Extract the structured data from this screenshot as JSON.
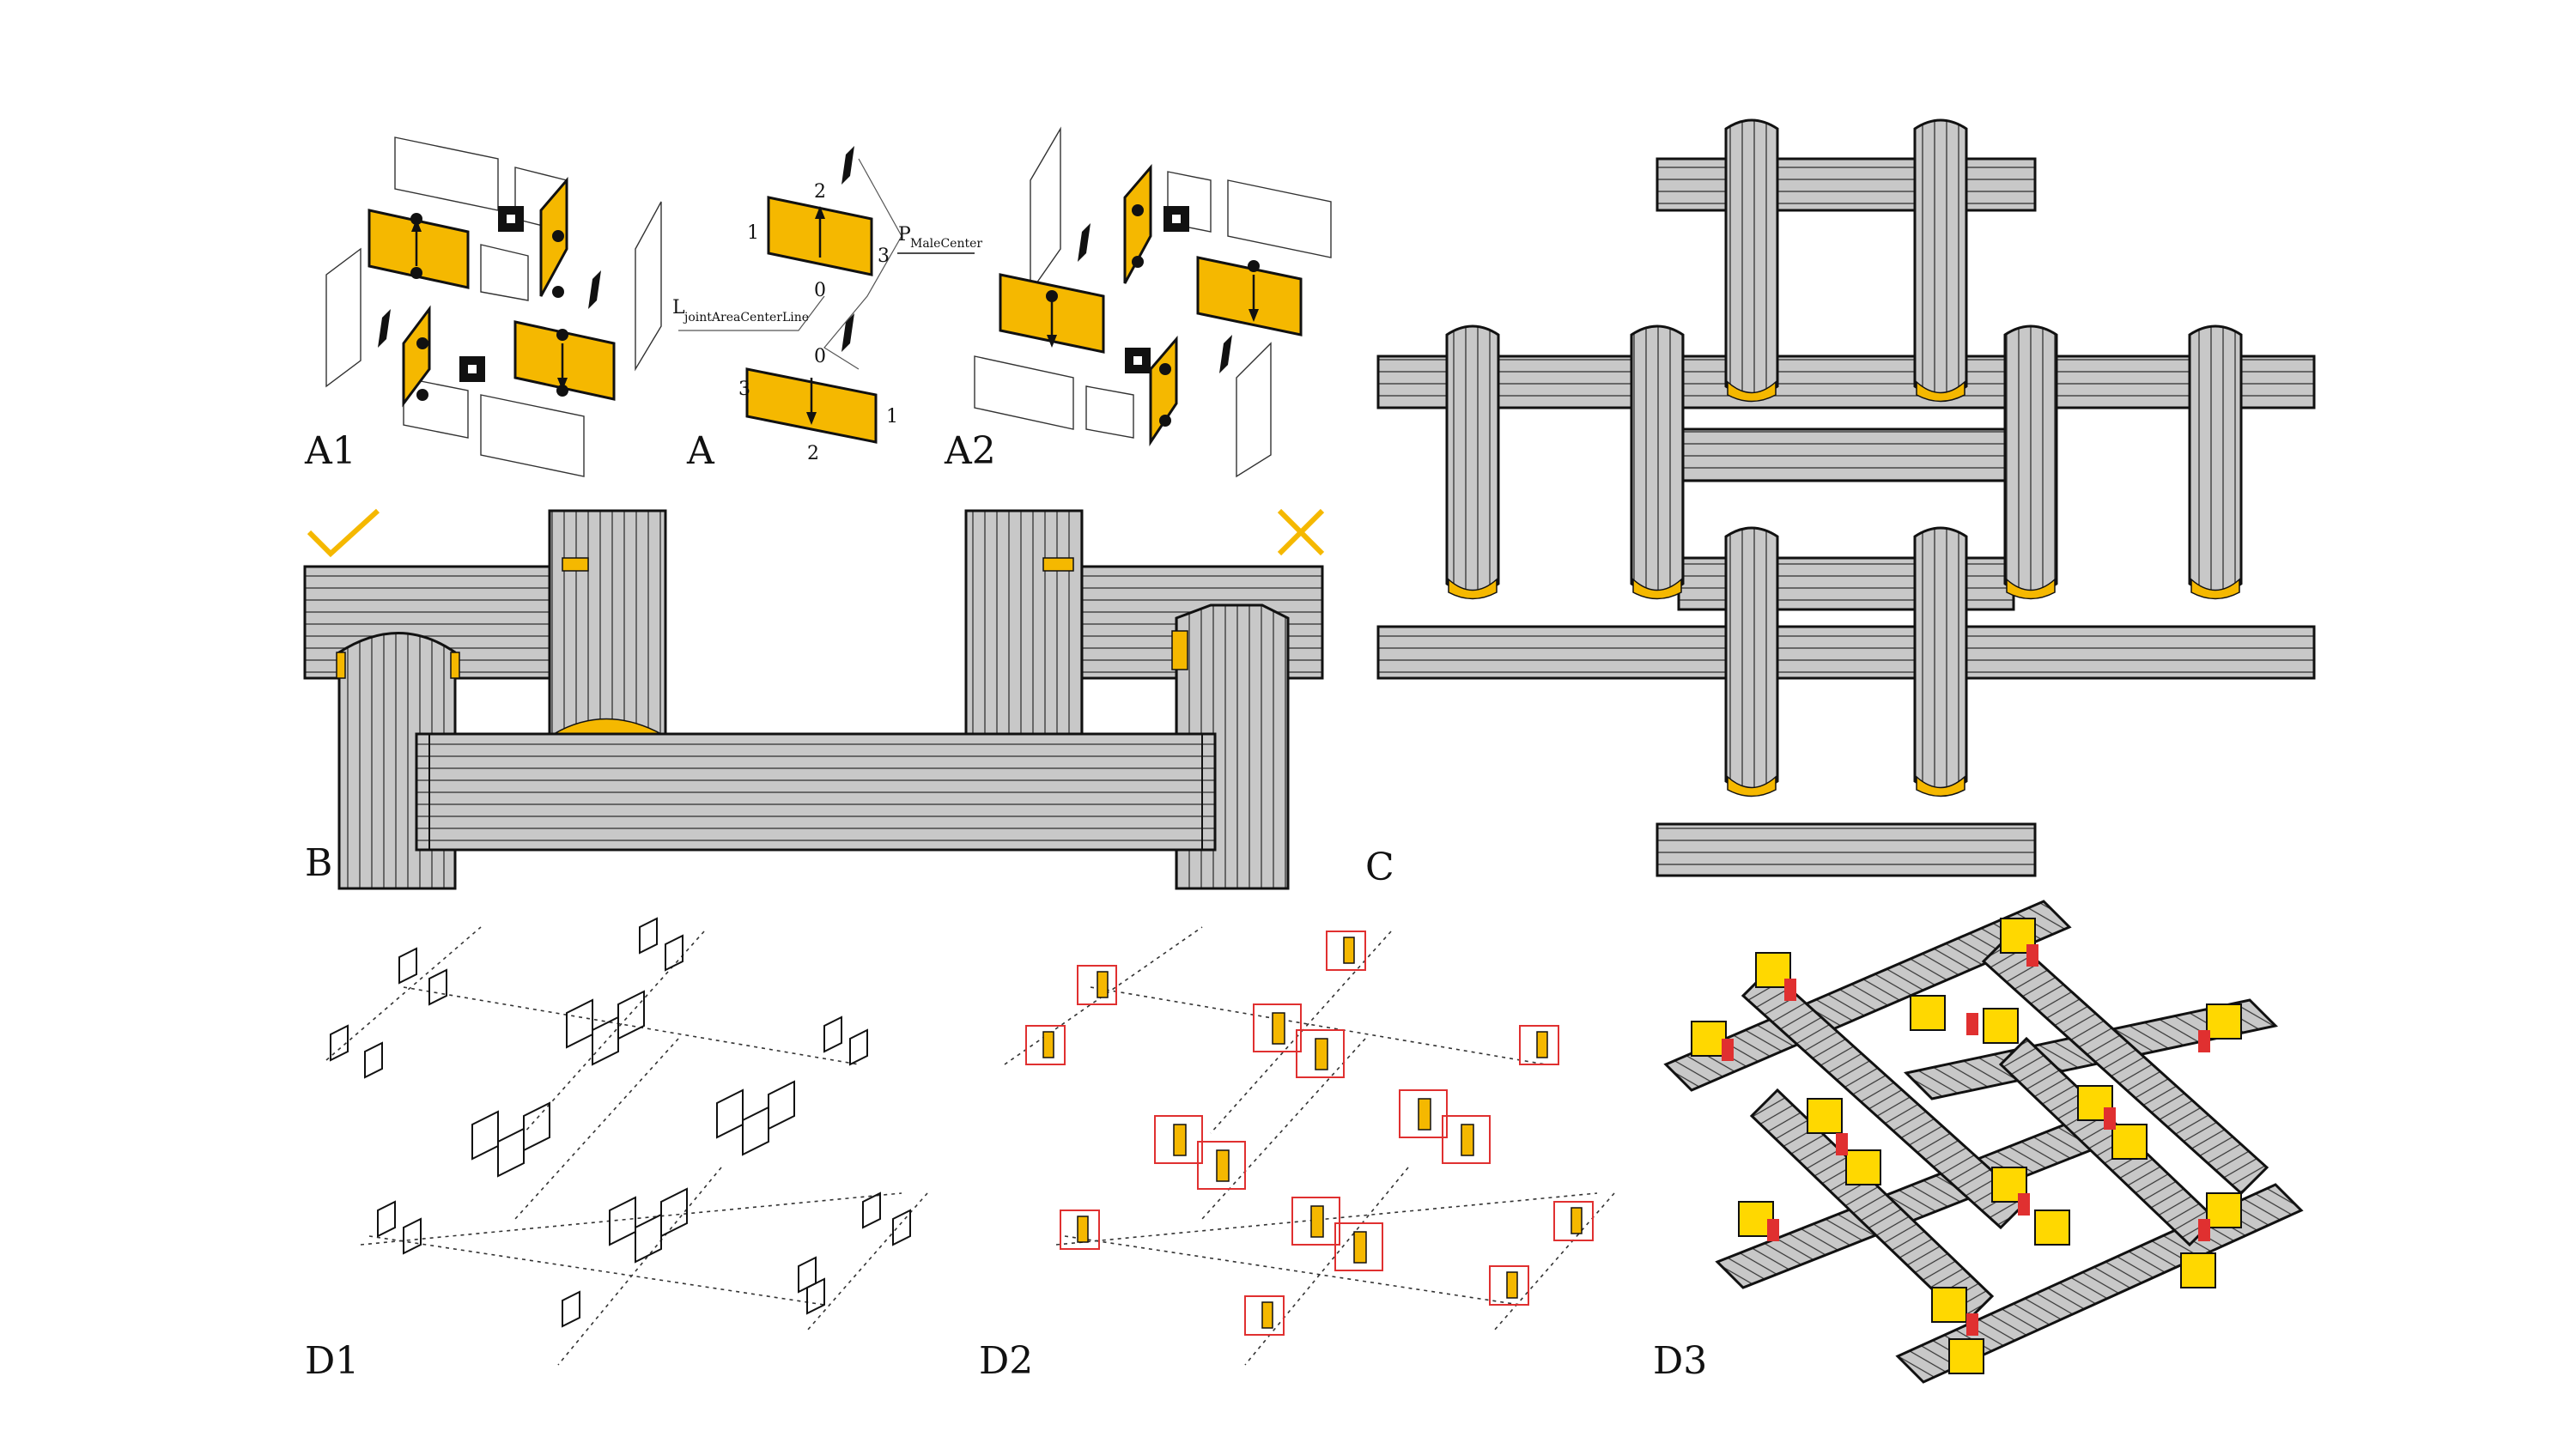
{
  "labels": {
    "a1": "A1",
    "a": "A",
    "a2": "A2",
    "b": "B",
    "c": "C",
    "d1": "D1",
    "d2": "D2",
    "d3": "D3"
  },
  "panel_a": {
    "edge_numbers": {
      "top_panel_left": "1",
      "top_panel_top": "2",
      "top_panel_right": "3",
      "mid_upper": "0",
      "mid_lower": "0",
      "bottom_panel_left": "3",
      "bottom_panel_bottom": "2",
      "bottom_panel_right": "1"
    },
    "joint_line_main": "L",
    "joint_line_sub": "jointAreaCenterLine",
    "male_center_main": "P",
    "male_center_sub": "MaleCenter"
  },
  "panel_b": {
    "valid_mark": "check-icon",
    "invalid_mark": "cross-icon"
  },
  "colors": {
    "joint": "#f5b800",
    "timber": "#c8c8c8",
    "outline": "#111111",
    "highlight_red": "#e03030",
    "d3_joint": "#ffd800"
  }
}
